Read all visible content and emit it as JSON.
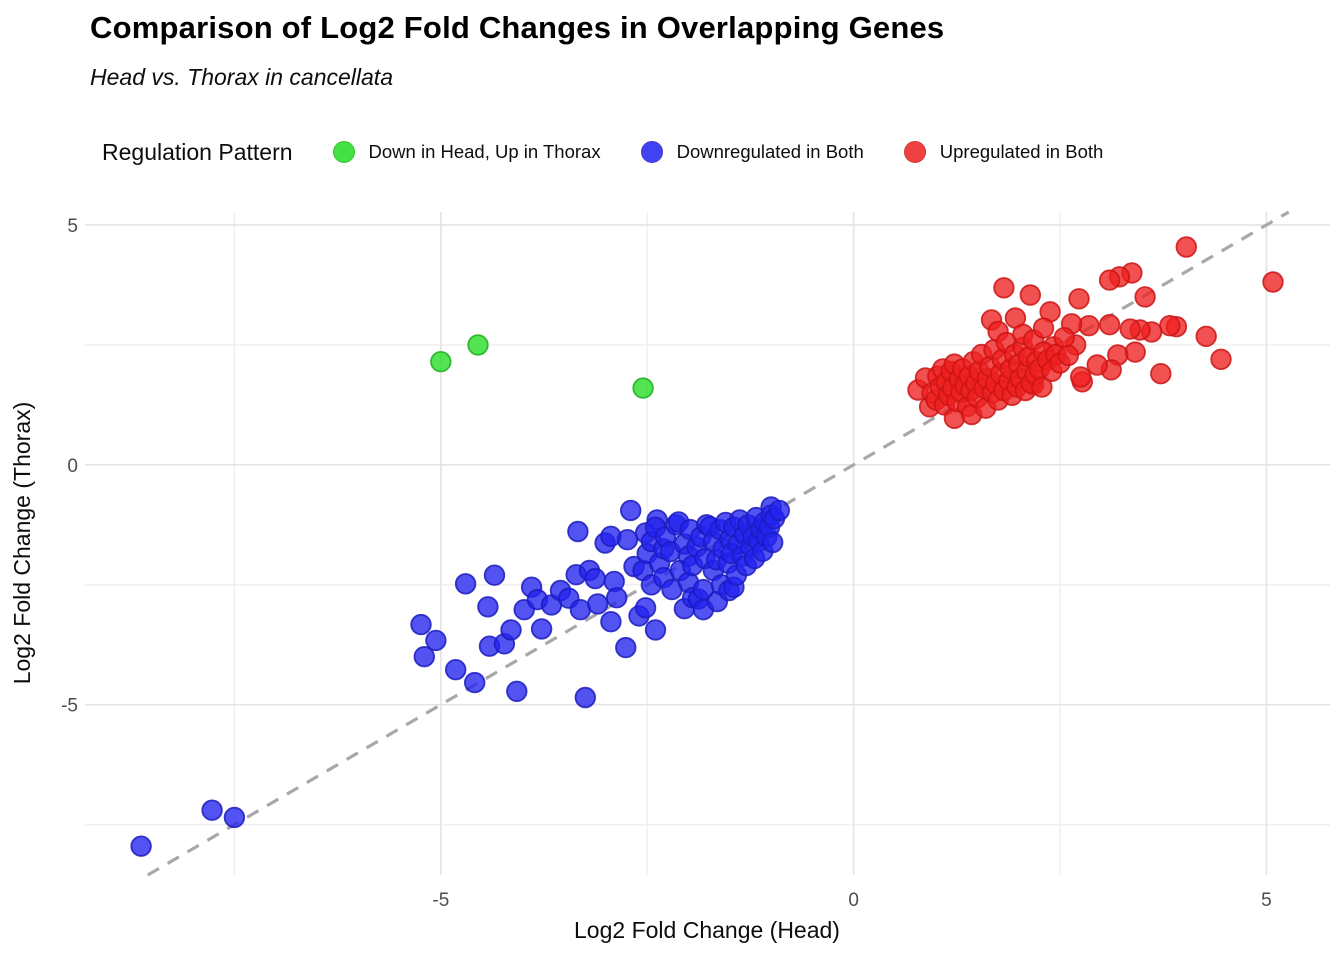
{
  "title": "Comparison of Log2 Fold Changes in Overlapping Genes",
  "subtitle": "Head vs. Thorax in cancellata",
  "legend": {
    "title": "Regulation Pattern"
  },
  "colors": {
    "grid_major": "#e4e4e4",
    "grid_minor": "#efefef",
    "identity_line": "#a8a8a8",
    "tick_label": "#4d4d4d",
    "axis_title": "#0d0d0d"
  },
  "chart_data": {
    "type": "scatter",
    "title": "Comparison of Log2 Fold Changes in Overlapping Genes",
    "subtitle": "Head vs. Thorax in cancellata",
    "xlabel": "Log2 Fold Change (Head)",
    "ylabel": "Log2 Fold Change (Thorax)",
    "xlim": [
      -9.31,
      5.77
    ],
    "ylim": [
      -8.55,
      5.27
    ],
    "xticks": [
      -5,
      0,
      5
    ],
    "yticks": [
      -5,
      0,
      5
    ],
    "xticks_minor": [
      -7.5,
      -2.5,
      2.5
    ],
    "yticks_minor": [
      -7.5,
      -2.5,
      2.5
    ],
    "grid": true,
    "legend_position": "top",
    "identity_line": {
      "type": "y=x",
      "style": "dashed"
    },
    "series": [
      {
        "name": "Down in Head, Up in Thorax",
        "color": "#22dd22",
        "stroke": "#1fae1f",
        "points": [
          [
            -5.0,
            2.15
          ],
          [
            -4.55,
            2.5
          ],
          [
            -2.55,
            1.6
          ]
        ]
      },
      {
        "name": "Downregulated in Both",
        "color": "#2222ee",
        "stroke": "#1b1bc0",
        "points": [
          [
            -8.63,
            -7.95
          ],
          [
            -7.77,
            -7.2
          ],
          [
            -7.5,
            -7.35
          ],
          [
            -5.24,
            -3.33
          ],
          [
            -5.2,
            -4.0
          ],
          [
            -5.06,
            -3.66
          ],
          [
            -4.82,
            -4.27
          ],
          [
            -4.7,
            -2.48
          ],
          [
            -4.59,
            -4.54
          ],
          [
            -4.43,
            -2.96
          ],
          [
            -4.41,
            -3.78
          ],
          [
            -4.35,
            -2.3
          ],
          [
            -4.23,
            -3.73
          ],
          [
            -4.15,
            -3.44
          ],
          [
            -4.08,
            -4.72
          ],
          [
            -3.99,
            -3.02
          ],
          [
            -3.9,
            -2.55
          ],
          [
            -3.83,
            -2.81
          ],
          [
            -3.78,
            -3.42
          ],
          [
            -3.66,
            -2.92
          ],
          [
            -3.55,
            -2.62
          ],
          [
            -3.45,
            -2.78
          ],
          [
            -3.36,
            -2.29
          ],
          [
            -3.34,
            -1.39
          ],
          [
            -3.31,
            -3.02
          ],
          [
            -3.25,
            -4.85
          ],
          [
            -3.2,
            -2.2
          ],
          [
            -3.13,
            -2.37
          ],
          [
            -3.1,
            -2.9
          ],
          [
            -3.01,
            -1.63
          ],
          [
            -2.94,
            -1.49
          ],
          [
            -2.94,
            -3.27
          ],
          [
            -2.9,
            -2.43
          ],
          [
            -2.87,
            -2.77
          ],
          [
            -2.76,
            -3.81
          ],
          [
            -2.74,
            -1.56
          ],
          [
            -2.7,
            -0.95
          ],
          [
            -2.66,
            -2.12
          ],
          [
            -2.6,
            -3.15
          ],
          [
            -2.52,
            -1.42
          ],
          [
            -2.52,
            -2.98
          ],
          [
            -2.4,
            -3.44
          ],
          [
            -2.38,
            -1.15
          ],
          [
            -2.55,
            -2.2
          ],
          [
            -2.5,
            -1.85
          ],
          [
            -2.45,
            -1.6
          ],
          [
            -2.45,
            -2.5
          ],
          [
            -2.4,
            -1.3
          ],
          [
            -2.35,
            -2.05
          ],
          [
            -2.3,
            -1.75
          ],
          [
            -2.3,
            -2.35
          ],
          [
            -2.28,
            -1.5
          ],
          [
            -2.22,
            -1.81
          ],
          [
            -2.2,
            -2.6
          ],
          [
            -2.15,
            -1.25
          ],
          [
            -2.12,
            -1.19
          ],
          [
            -2.1,
            -2.2
          ],
          [
            -2.05,
            -1.65
          ],
          [
            -2.05,
            -3.0
          ],
          [
            -2.0,
            -1.9
          ],
          [
            -2.0,
            -2.45
          ],
          [
            -1.98,
            -1.35
          ],
          [
            -1.95,
            -2.1
          ],
          [
            -1.95,
            -2.77
          ],
          [
            -1.9,
            -1.71
          ],
          [
            -1.88,
            -2.8
          ],
          [
            -1.85,
            -1.5
          ],
          [
            -1.82,
            -2.6
          ],
          [
            -1.82,
            -3.02
          ],
          [
            -1.8,
            -1.95
          ],
          [
            -1.78,
            -1.25
          ],
          [
            -1.74,
            -1.29
          ],
          [
            -1.7,
            -2.2
          ],
          [
            -1.7,
            -1.6
          ],
          [
            -1.66,
            -1.98
          ],
          [
            -1.65,
            -2.85
          ],
          [
            -1.62,
            -1.35
          ],
          [
            -1.6,
            -2.5
          ],
          [
            -1.58,
            -1.75
          ],
          [
            -1.55,
            -1.2
          ],
          [
            -1.52,
            -2.05
          ],
          [
            -1.51,
            -2.62
          ],
          [
            -1.5,
            -1.55
          ],
          [
            -1.48,
            -1.85
          ],
          [
            -1.45,
            -1.3
          ],
          [
            -1.45,
            -2.55
          ],
          [
            -1.42,
            -2.3
          ],
          [
            -1.4,
            -1.65
          ],
          [
            -1.38,
            -1.15
          ],
          [
            -1.35,
            -1.9
          ],
          [
            -1.32,
            -1.45
          ],
          [
            -1.3,
            -2.1
          ],
          [
            -1.28,
            -1.25
          ],
          [
            -1.25,
            -1.7
          ],
          [
            -1.22,
            -1.5
          ],
          [
            -1.2,
            -1.95
          ],
          [
            -1.18,
            -1.1
          ],
          [
            -1.15,
            -1.6
          ],
          [
            -1.12,
            -1.35
          ],
          [
            -1.1,
            -1.8
          ],
          [
            -1.08,
            -1.2
          ],
          [
            -1.05,
            -1.5
          ],
          [
            -1.02,
            -1.3
          ],
          [
            -1.0,
            -0.88
          ],
          [
            -1.0,
            -1.05
          ],
          [
            -0.98,
            -1.62
          ],
          [
            -0.96,
            -1.12
          ],
          [
            -0.9,
            -0.95
          ]
        ]
      },
      {
        "name": "Upregulated in Both",
        "color": "#ee2020",
        "stroke": "#cc1414",
        "points": [
          [
            4.03,
            4.54
          ],
          [
            3.37,
            4.0
          ],
          [
            3.22,
            3.92
          ],
          [
            3.1,
            3.85
          ],
          [
            5.08,
            3.81
          ],
          [
            3.53,
            3.5
          ],
          [
            4.27,
            2.68
          ],
          [
            4.45,
            2.2
          ],
          [
            3.91,
            2.88
          ],
          [
            3.83,
            2.9
          ],
          [
            3.72,
            1.9
          ],
          [
            3.61,
            2.77
          ],
          [
            3.47,
            2.81
          ],
          [
            3.41,
            2.35
          ],
          [
            3.35,
            2.83
          ],
          [
            3.2,
            2.29
          ],
          [
            3.12,
            1.98
          ],
          [
            3.1,
            2.92
          ],
          [
            2.95,
            2.08
          ],
          [
            2.85,
            2.9
          ],
          [
            2.77,
            1.73
          ],
          [
            2.75,
            1.83
          ],
          [
            2.73,
            3.46
          ],
          [
            2.69,
            2.5
          ],
          [
            2.64,
            2.94
          ],
          [
            2.42,
            2.46
          ],
          [
            2.38,
            3.19
          ],
          [
            2.18,
            1.67
          ],
          [
            2.14,
            3.54
          ],
          [
            1.96,
            3.06
          ],
          [
            1.82,
            3.69
          ],
          [
            1.67,
            3.02
          ],
          [
            0.78,
            1.56
          ],
          [
            0.87,
            1.81
          ],
          [
            0.92,
            1.21
          ],
          [
            0.95,
            1.5
          ],
          [
            1.0,
            1.35
          ],
          [
            1.02,
            1.85
          ],
          [
            1.05,
            1.62
          ],
          [
            1.08,
            2.0
          ],
          [
            1.1,
            1.25
          ],
          [
            1.12,
            1.72
          ],
          [
            1.15,
            1.45
          ],
          [
            1.18,
            1.95
          ],
          [
            1.2,
            1.6
          ],
          [
            1.22,
            0.97
          ],
          [
            1.22,
            2.1
          ],
          [
            1.25,
            1.32
          ],
          [
            1.28,
            1.78
          ],
          [
            1.3,
            1.52
          ],
          [
            1.32,
            2.0
          ],
          [
            1.35,
            1.65
          ],
          [
            1.38,
            1.22
          ],
          [
            1.4,
            1.85
          ],
          [
            1.42,
            1.55
          ],
          [
            1.43,
            1.05
          ],
          [
            1.45,
            2.15
          ],
          [
            1.48,
            1.7
          ],
          [
            1.5,
            1.4
          ],
          [
            1.52,
            1.95
          ],
          [
            1.55,
            2.3
          ],
          [
            1.58,
            1.6
          ],
          [
            1.6,
            1.18
          ],
          [
            1.62,
            1.8
          ],
          [
            1.65,
            2.05
          ],
          [
            1.68,
            1.5
          ],
          [
            1.7,
            2.4
          ],
          [
            1.72,
            1.68
          ],
          [
            1.75,
            1.35
          ],
          [
            1.75,
            2.78
          ],
          [
            1.78,
            1.9
          ],
          [
            1.8,
            2.2
          ],
          [
            1.82,
            1.55
          ],
          [
            1.85,
            2.55
          ],
          [
            1.88,
            1.75
          ],
          [
            1.9,
            2.0
          ],
          [
            1.92,
            1.45
          ],
          [
            1.95,
            2.3
          ],
          [
            1.98,
            1.62
          ],
          [
            2.0,
            2.1
          ],
          [
            2.02,
            1.8
          ],
          [
            2.05,
            2.45
          ],
          [
            2.05,
            2.72
          ],
          [
            2.08,
            1.55
          ],
          [
            2.1,
            1.95
          ],
          [
            2.12,
            2.25
          ],
          [
            2.15,
            1.7
          ],
          [
            2.18,
            2.6
          ],
          [
            2.2,
            1.88
          ],
          [
            2.22,
            2.15
          ],
          [
            2.25,
            2.0
          ],
          [
            2.28,
            1.62
          ],
          [
            2.3,
            2.35
          ],
          [
            2.3,
            2.85
          ],
          [
            2.35,
            2.18
          ],
          [
            2.4,
            1.95
          ],
          [
            2.45,
            2.3
          ],
          [
            2.5,
            2.12
          ],
          [
            2.55,
            2.65
          ],
          [
            2.6,
            2.28
          ]
        ]
      }
    ]
  }
}
